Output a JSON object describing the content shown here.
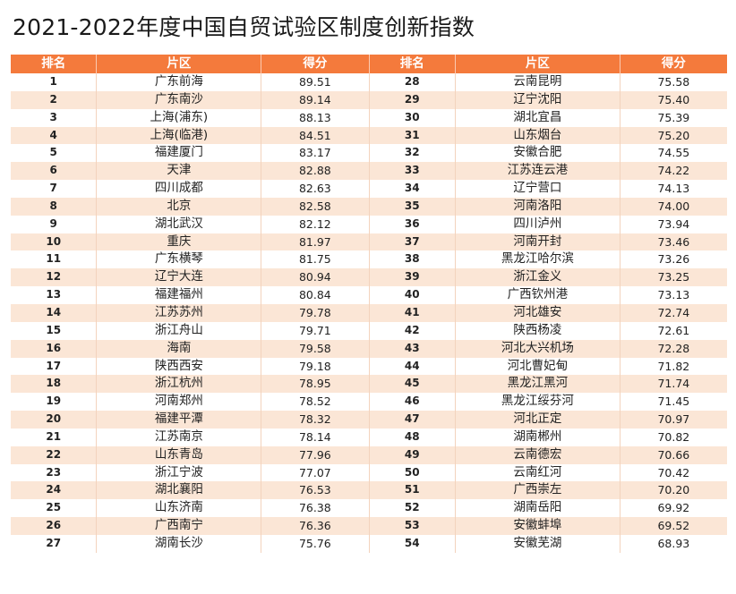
{
  "title": "2021-2022年度中国自贸试验区制度创新指数",
  "headers": {
    "rank": "排名",
    "zone": "片区",
    "score": "得分"
  },
  "colors": {
    "header_bg": "#f47a3c",
    "alt_row": "#fbe6d6"
  },
  "rows": [
    {
      "rank": "1",
      "zone": "广东前海",
      "score": "89.51",
      "rank2": "28",
      "zone2": "云南昆明",
      "score2": "75.58"
    },
    {
      "rank": "2",
      "zone": "广东南沙",
      "score": "89.14",
      "rank2": "29",
      "zone2": "辽宁沈阳",
      "score2": "75.40"
    },
    {
      "rank": "3",
      "zone": "上海(浦东)",
      "score": "88.13",
      "rank2": "30",
      "zone2": "湖北宜昌",
      "score2": "75.39"
    },
    {
      "rank": "4",
      "zone": "上海(临港)",
      "score": "84.51",
      "rank2": "31",
      "zone2": "山东烟台",
      "score2": "75.20"
    },
    {
      "rank": "5",
      "zone": "福建厦门",
      "score": "83.17",
      "rank2": "32",
      "zone2": "安徽合肥",
      "score2": "74.55"
    },
    {
      "rank": "6",
      "zone": "天津",
      "score": "82.88",
      "rank2": "33",
      "zone2": "江苏连云港",
      "score2": "74.22"
    },
    {
      "rank": "7",
      "zone": "四川成都",
      "score": "82.63",
      "rank2": "34",
      "zone2": "辽宁营口",
      "score2": "74.13"
    },
    {
      "rank": "8",
      "zone": "北京",
      "score": "82.58",
      "rank2": "35",
      "zone2": "河南洛阳",
      "score2": "74.00"
    },
    {
      "rank": "9",
      "zone": "湖北武汉",
      "score": "82.12",
      "rank2": "36",
      "zone2": "四川泸州",
      "score2": "73.94"
    },
    {
      "rank": "10",
      "zone": "重庆",
      "score": "81.97",
      "rank2": "37",
      "zone2": "河南开封",
      "score2": "73.46"
    },
    {
      "rank": "11",
      "zone": "广东横琴",
      "score": "81.75",
      "rank2": "38",
      "zone2": "黑龙江哈尔滨",
      "score2": "73.26"
    },
    {
      "rank": "12",
      "zone": "辽宁大连",
      "score": "80.94",
      "rank2": "39",
      "zone2": "浙江金义",
      "score2": "73.25"
    },
    {
      "rank": "13",
      "zone": "福建福州",
      "score": "80.84",
      "rank2": "40",
      "zone2": "广西钦州港",
      "score2": "73.13"
    },
    {
      "rank": "14",
      "zone": "江苏苏州",
      "score": "79.78",
      "rank2": "41",
      "zone2": "河北雄安",
      "score2": "72.74"
    },
    {
      "rank": "15",
      "zone": "浙江舟山",
      "score": "79.71",
      "rank2": "42",
      "zone2": "陕西杨凌",
      "score2": "72.61"
    },
    {
      "rank": "16",
      "zone": "海南",
      "score": "79.58",
      "rank2": "43",
      "zone2": "河北大兴机场",
      "score2": "72.28"
    },
    {
      "rank": "17",
      "zone": "陕西西安",
      "score": "79.18",
      "rank2": "44",
      "zone2": "河北曹妃甸",
      "score2": "71.82"
    },
    {
      "rank": "18",
      "zone": "浙江杭州",
      "score": "78.95",
      "rank2": "45",
      "zone2": "黑龙江黑河",
      "score2": "71.74"
    },
    {
      "rank": "19",
      "zone": "河南郑州",
      "score": "78.52",
      "rank2": "46",
      "zone2": "黑龙江绥芬河",
      "score2": "71.45"
    },
    {
      "rank": "20",
      "zone": "福建平潭",
      "score": "78.32",
      "rank2": "47",
      "zone2": "河北正定",
      "score2": "70.97"
    },
    {
      "rank": "21",
      "zone": "江苏南京",
      "score": "78.14",
      "rank2": "48",
      "zone2": "湖南郴州",
      "score2": "70.82"
    },
    {
      "rank": "22",
      "zone": "山东青岛",
      "score": "77.96",
      "rank2": "49",
      "zone2": "云南德宏",
      "score2": "70.66"
    },
    {
      "rank": "23",
      "zone": "浙江宁波",
      "score": "77.07",
      "rank2": "50",
      "zone2": "云南红河",
      "score2": "70.42"
    },
    {
      "rank": "24",
      "zone": "湖北襄阳",
      "score": "76.53",
      "rank2": "51",
      "zone2": "广西崇左",
      "score2": "70.20"
    },
    {
      "rank": "25",
      "zone": "山东济南",
      "score": "76.38",
      "rank2": "52",
      "zone2": "湖南岳阳",
      "score2": "69.92"
    },
    {
      "rank": "26",
      "zone": "广西南宁",
      "score": "76.36",
      "rank2": "53",
      "zone2": "安徽蚌埠",
      "score2": "69.52"
    },
    {
      "rank": "27",
      "zone": "湖南长沙",
      "score": "75.76",
      "rank2": "54",
      "zone2": "安徽芜湖",
      "score2": "68.93"
    }
  ]
}
